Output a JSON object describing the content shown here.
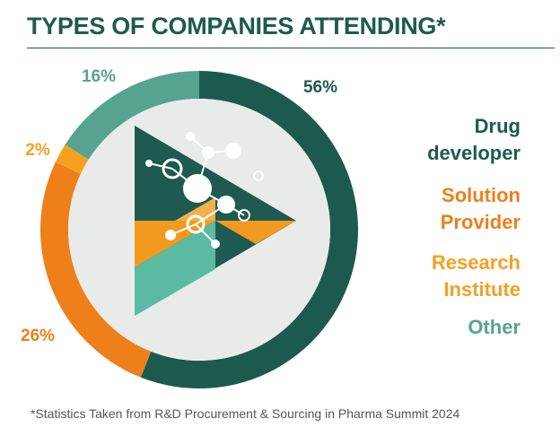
{
  "chart_data": {
    "type": "pie",
    "donut": true,
    "title": "TYPES OF COMPANIES ATTENDING*",
    "categories": [
      "Drug developer",
      "Solution Provider",
      "Research Institute",
      "Other"
    ],
    "values": [
      56,
      26,
      2,
      16
    ],
    "value_labels": [
      "56%",
      "26%",
      "2%",
      "16%"
    ],
    "colors": [
      "#1d5a4e",
      "#ee7f1a",
      "#f5a021",
      "#56a48f"
    ],
    "footnote": "*Statistics Taken from R&D Procurement & Sourcing in Pharma Summit 2024"
  }
}
